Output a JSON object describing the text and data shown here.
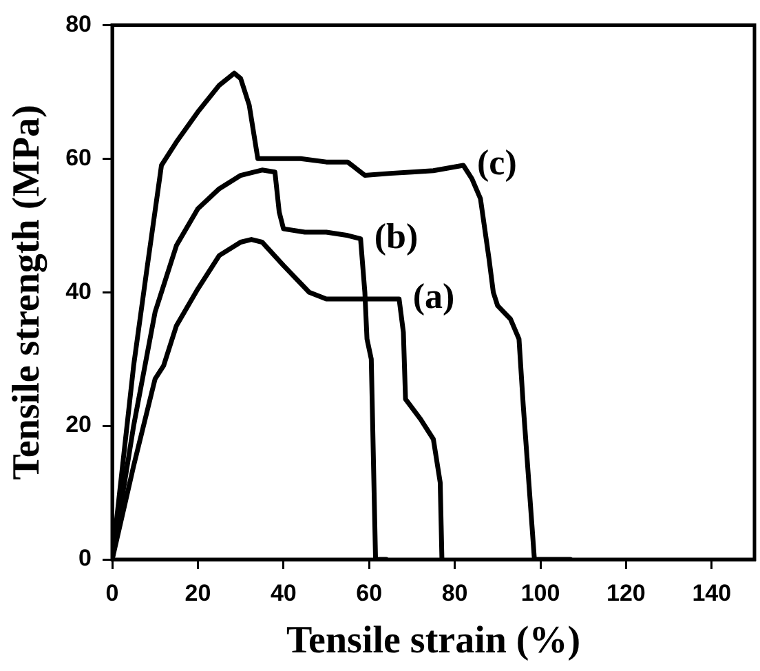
{
  "chart_data": {
    "type": "line",
    "xlabel": "Tensile strain (%)",
    "ylabel": "Tensile strength (MPa)",
    "xlim": [
      0,
      150
    ],
    "xticks": [
      0,
      20,
      40,
      60,
      80,
      100,
      120,
      140
    ],
    "ylim": [
      0,
      80
    ],
    "yticks": [
      0,
      20,
      40,
      60,
      80
    ],
    "grid": false,
    "legend": false,
    "marker": "none",
    "line_style": "solid",
    "series": [
      {
        "name": "(a)",
        "color": "#000000",
        "x": [
          0,
          5,
          10,
          12,
          15,
          20,
          25,
          30,
          32.5,
          35,
          40,
          46,
          50,
          55,
          60,
          64,
          67,
          68,
          68.5,
          72,
          75,
          76.6,
          77
        ],
        "values": [
          0,
          14,
          27,
          29,
          35,
          40.5,
          45.5,
          47.5,
          47.9,
          47.5,
          44,
          40,
          39,
          39,
          39,
          39,
          39,
          34,
          24,
          21,
          18,
          11.5,
          0
        ]
      },
      {
        "name": "(b)",
        "color": "#000000",
        "x": [
          0,
          5,
          10,
          15,
          20,
          25,
          30,
          35,
          38,
          39,
          40,
          45,
          50,
          55,
          58,
          59,
          59.5,
          60.5,
          61.5,
          64
        ],
        "values": [
          0,
          20,
          37,
          47,
          52.5,
          55.5,
          57.5,
          58.3,
          58,
          52,
          49.5,
          49,
          49,
          48.5,
          48,
          40,
          33,
          30,
          0,
          0
        ]
      },
      {
        "name": "(c)",
        "color": "#000000",
        "x": [
          0,
          5,
          8,
          11.5,
          15,
          20,
          25,
          28.5,
          30,
          32,
          34,
          38,
          44,
          50,
          55,
          59,
          65,
          70,
          75,
          82,
          84,
          86,
          88,
          89,
          90,
          93,
          95,
          96,
          98.6,
          100,
          107
        ],
        "values": [
          0,
          29,
          43,
          59,
          62.5,
          67,
          71,
          72.8,
          72,
          68,
          60,
          60,
          60,
          59.5,
          59.5,
          57.5,
          57.8,
          58,
          58.2,
          59,
          57,
          54,
          45,
          40,
          38,
          36,
          33,
          23,
          0,
          0,
          0
        ]
      }
    ]
  }
}
